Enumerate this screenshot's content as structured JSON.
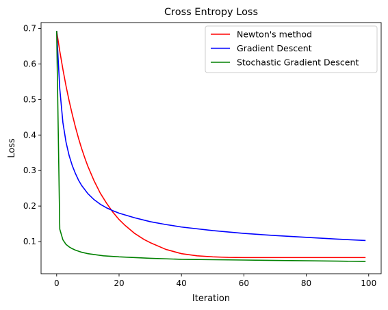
{
  "chart_data": {
    "type": "line",
    "title": "Cross Entropy Loss",
    "xlabel": "Iteration",
    "ylabel": "Loss",
    "xlim": [
      -5,
      104
    ],
    "ylim": [
      0.0095,
      0.7165
    ],
    "xticks": [
      0,
      20,
      40,
      60,
      80,
      100
    ],
    "yticks": [
      0.1,
      0.2,
      0.3,
      0.4,
      0.5,
      0.6,
      0.7
    ],
    "ytick_labels": [
      "0.1",
      "0.2",
      "0.3",
      "0.4",
      "0.5",
      "0.6",
      "0.7"
    ],
    "grid": false,
    "legend_position": "top-right",
    "series": [
      {
        "name": "Newton's method",
        "color": "#ff0000",
        "x": [
          0,
          1,
          2,
          3,
          4,
          5,
          6,
          7,
          8,
          9,
          10,
          12,
          14,
          16,
          18,
          20,
          22,
          25,
          28,
          30,
          35,
          40,
          45,
          50,
          55,
          60,
          70,
          80,
          90,
          99
        ],
        "y": [
          0.693,
          0.636,
          0.585,
          0.538,
          0.496,
          0.458,
          0.423,
          0.391,
          0.362,
          0.336,
          0.312,
          0.271,
          0.236,
          0.208,
          0.183,
          0.162,
          0.145,
          0.123,
          0.106,
          0.097,
          0.078,
          0.066,
          0.06,
          0.057,
          0.0555,
          0.055,
          0.055,
          0.055,
          0.055,
          0.055
        ]
      },
      {
        "name": "Gradient Descent",
        "color": "#0000ff",
        "x": [
          0,
          1,
          2,
          3,
          4,
          5,
          6,
          7,
          8,
          10,
          12,
          14,
          16,
          18,
          20,
          25,
          30,
          35,
          40,
          50,
          60,
          70,
          80,
          90,
          99
        ],
        "y": [
          0.693,
          0.53,
          0.435,
          0.38,
          0.342,
          0.314,
          0.292,
          0.273,
          0.258,
          0.235,
          0.218,
          0.205,
          0.195,
          0.187,
          0.18,
          0.167,
          0.156,
          0.148,
          0.141,
          0.131,
          0.123,
          0.117,
          0.112,
          0.107,
          0.103
        ]
      },
      {
        "name": "Stochastic Gradient Descent",
        "color": "#008000",
        "x": [
          0,
          1,
          2,
          3,
          4,
          5,
          6,
          8,
          10,
          15,
          20,
          30,
          40,
          50,
          60,
          70,
          80,
          90,
          99
        ],
        "y": [
          0.693,
          0.135,
          0.105,
          0.092,
          0.085,
          0.08,
          0.076,
          0.07,
          0.066,
          0.06,
          0.057,
          0.053,
          0.05,
          0.049,
          0.048,
          0.047,
          0.046,
          0.045,
          0.044
        ]
      }
    ]
  }
}
